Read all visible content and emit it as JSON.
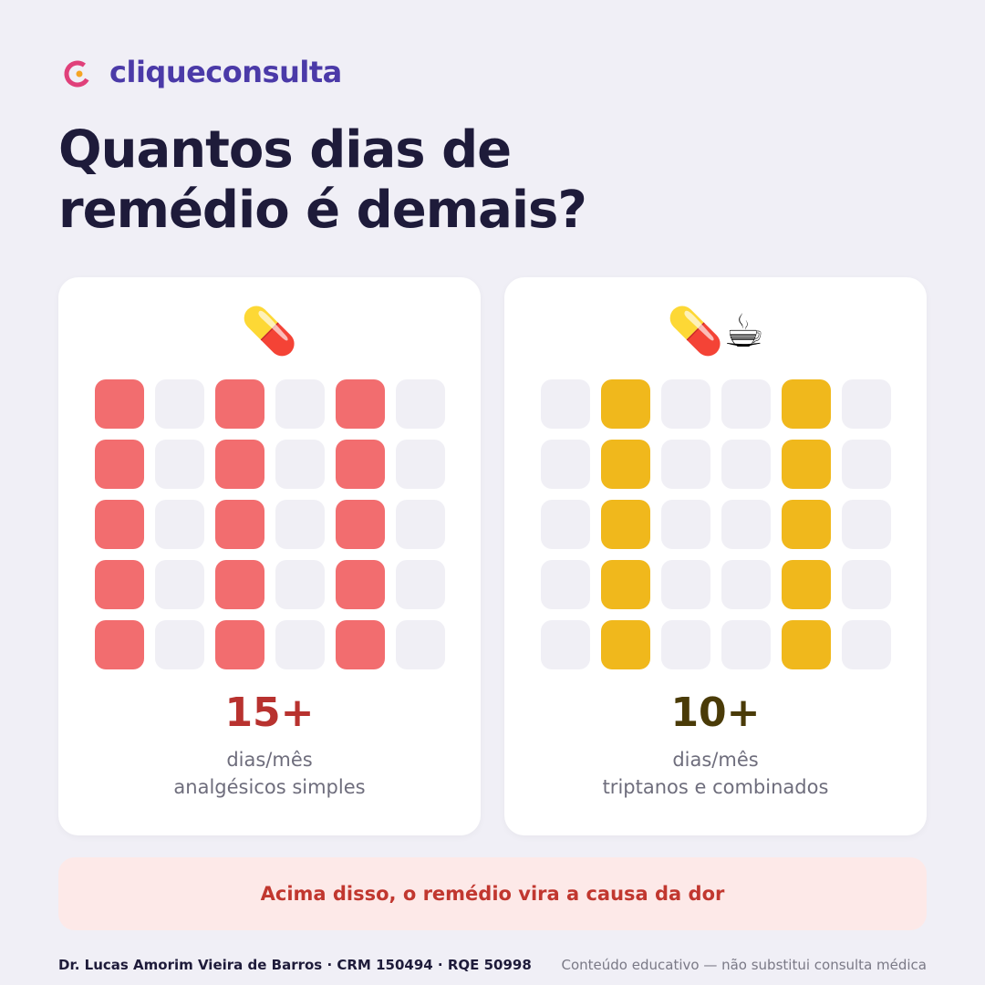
{
  "header": {
    "logo": "cliqueconsulta",
    "title_lines": [
      "Quantos dias de",
      "remédio é demais?"
    ]
  },
  "cards": [
    {
      "icon": "💊",
      "filled_columns": [
        0,
        2,
        4
      ],
      "fill_color": "#f26d6f",
      "number": "15+",
      "number_color": "#b8322f",
      "caption_lines": [
        "dias/mês",
        "analgésicos simples"
      ]
    },
    {
      "icon": "💊☕",
      "filled_columns": [
        1,
        4
      ],
      "fill_color": "#f0b81c",
      "number": "10+",
      "number_color": "#4a3b08",
      "caption_lines": [
        "dias/mês",
        "triptanos e combinados"
      ]
    }
  ],
  "banner": "Acima disso, o remédio vira a causa da dor",
  "footer": {
    "author": "Dr. Lucas Amorim Vieira de Barros · CRM 150494 · RQE 50998",
    "disclaimer": "Conteúdo educativo — não substitui consulta médica"
  }
}
